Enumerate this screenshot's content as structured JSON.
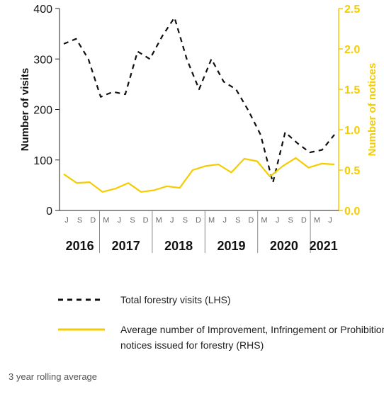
{
  "chart_data": {
    "type": "line",
    "x_month_labels": [
      "J",
      "S",
      "D",
      "M",
      "J",
      "S",
      "D",
      "M",
      "J",
      "S",
      "D",
      "M",
      "J",
      "S",
      "D",
      "M",
      "J",
      "S",
      "D",
      "M",
      "J"
    ],
    "year_labels": [
      "2016",
      "2017",
      "2018",
      "2019",
      "2020",
      "2021"
    ],
    "yaxis_left": {
      "label": "Number of visits",
      "ticks": [
        "0",
        "100",
        "200",
        "300",
        "400"
      ],
      "ylim": [
        0,
        400
      ]
    },
    "yaxis_right": {
      "label": "Number of notices",
      "ticks": [
        "0.0",
        "0.5",
        "1.0",
        "1.5",
        "2.0",
        "2.5"
      ],
      "ylim": [
        0,
        2.5
      ]
    },
    "series": [
      {
        "name": "Total forestry visits (LHS)",
        "axis": "left",
        "style": "dashed",
        "color": "#111111",
        "values": [
          330,
          340,
          300,
          225,
          235,
          230,
          315,
          300,
          345,
          382,
          300,
          240,
          300,
          255,
          240,
          198,
          150,
          55,
          155,
          133,
          115,
          120,
          150
        ]
      },
      {
        "name": "Average number of Improvement, Infringement or Prohibition notices issued for forestry (RHS)",
        "axis": "right",
        "style": "solid",
        "color": "#f5cc00",
        "values": [
          0.45,
          0.34,
          0.35,
          0.23,
          0.27,
          0.34,
          0.23,
          0.25,
          0.3,
          0.28,
          0.5,
          0.55,
          0.57,
          0.47,
          0.64,
          0.61,
          0.42,
          0.55,
          0.65,
          0.53,
          0.58,
          0.57
        ]
      }
    ],
    "grid": "none",
    "legend_position": "bottom"
  },
  "legend": {
    "items": [
      {
        "label": "Total forestry visits (LHS)"
      },
      {
        "label": "Average number of Improvement, Infringement or Prohibition notices issued for forestry (RHS)"
      }
    ]
  },
  "footnote": "3 year rolling average"
}
